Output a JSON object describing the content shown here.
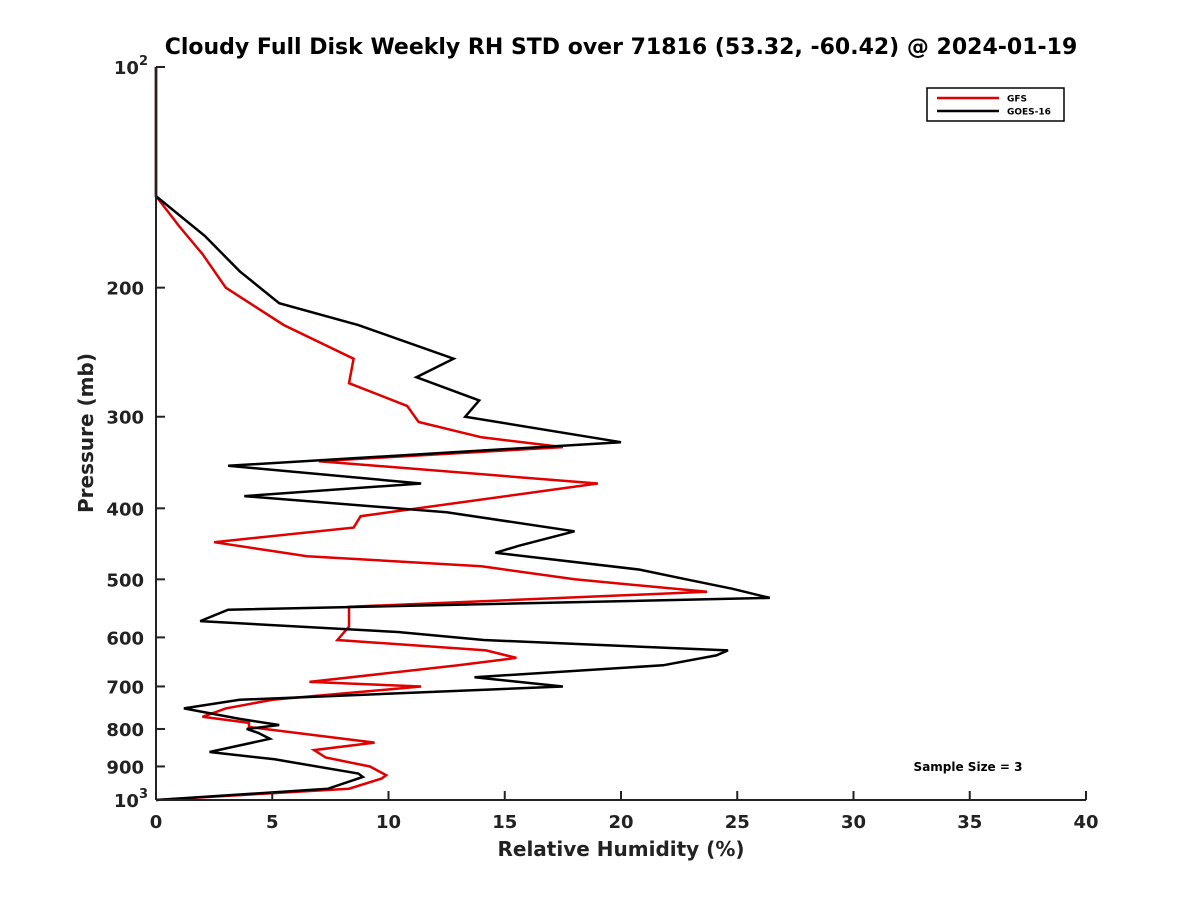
{
  "chart_data": {
    "type": "line",
    "title": "Cloudy Full Disk Weekly RH STD over 71816 (53.32, -60.42) @ 2024-01-19",
    "xlabel": "Relative Humidity (%)",
    "ylabel": "Pressure (mb)",
    "xlim": [
      0,
      40
    ],
    "ylim": [
      1000,
      100
    ],
    "yscale": "log",
    "y_reversed": true,
    "x_ticks": [
      0,
      5,
      10,
      15,
      20,
      25,
      30,
      35,
      40
    ],
    "x_tick_labels": [
      "0",
      "5",
      "10",
      "15",
      "20",
      "25",
      "30",
      "35",
      "40"
    ],
    "y_ticks": [
      100,
      200,
      300,
      400,
      500,
      600,
      700,
      800,
      900,
      1000
    ],
    "y_tick_labels": [
      {
        "base": "10",
        "exp": "2"
      },
      {
        "base": "200",
        "exp": ""
      },
      {
        "base": "300",
        "exp": ""
      },
      {
        "base": "400",
        "exp": ""
      },
      {
        "base": "500",
        "exp": ""
      },
      {
        "base": "600",
        "exp": ""
      },
      {
        "base": "700",
        "exp": ""
      },
      {
        "base": "800",
        "exp": ""
      },
      {
        "base": "900",
        "exp": ""
      },
      {
        "base": "10",
        "exp": "3"
      }
    ],
    "grid": false,
    "legend_position": "top-right",
    "annotation": "Sample Size = 3",
    "series": [
      {
        "name": "GFS",
        "color": "#e00000",
        "points": [
          [
            0,
            100
          ],
          [
            0,
            150
          ],
          [
            1,
            165
          ],
          [
            2,
            180
          ],
          [
            3,
            200
          ],
          [
            5.5,
            225
          ],
          [
            8.5,
            250
          ],
          [
            8.3,
            270
          ],
          [
            10.8,
            290
          ],
          [
            11.3,
            305
          ],
          [
            14,
            320
          ],
          [
            17.5,
            330
          ],
          [
            7,
            345
          ],
          [
            19,
            370
          ],
          [
            8.8,
            410
          ],
          [
            8.5,
            425
          ],
          [
            2.5,
            445
          ],
          [
            6.5,
            465
          ],
          [
            14,
            480
          ],
          [
            18,
            500
          ],
          [
            23.7,
            520
          ],
          [
            8.3,
            545
          ],
          [
            8.3,
            580
          ],
          [
            7.8,
            605
          ],
          [
            14.2,
            625
          ],
          [
            15.5,
            640
          ],
          [
            13,
            655
          ],
          [
            6.6,
            690
          ],
          [
            11.4,
            700
          ],
          [
            5,
            730
          ],
          [
            3,
            750
          ],
          [
            2,
            770
          ],
          [
            4,
            785
          ],
          [
            4,
            795
          ],
          [
            9.4,
            835
          ],
          [
            6.8,
            855
          ],
          [
            7.3,
            875
          ],
          [
            9.2,
            900
          ],
          [
            9.9,
            925
          ],
          [
            9.7,
            935
          ],
          [
            8.3,
            965
          ],
          [
            0,
            1000
          ]
        ]
      },
      {
        "name": "GOES-16",
        "color": "#000000",
        "points": [
          [
            0,
            100
          ],
          [
            0,
            150
          ],
          [
            2.1,
            170
          ],
          [
            3.6,
            190
          ],
          [
            5.3,
            210
          ],
          [
            8.7,
            225
          ],
          [
            12.8,
            250
          ],
          [
            11.2,
            265
          ],
          [
            13.9,
            285
          ],
          [
            13.3,
            300
          ],
          [
            20,
            325
          ],
          [
            3.1,
            350
          ],
          [
            11.4,
            370
          ],
          [
            3.8,
            385
          ],
          [
            12.5,
            405
          ],
          [
            18,
            430
          ],
          [
            15.6,
            450
          ],
          [
            14.6,
            460
          ],
          [
            20.8,
            485
          ],
          [
            22.8,
            500
          ],
          [
            24.8,
            515
          ],
          [
            26.4,
            530
          ],
          [
            3.1,
            550
          ],
          [
            1.9,
            570
          ],
          [
            10.4,
            590
          ],
          [
            14.1,
            605
          ],
          [
            24.6,
            625
          ],
          [
            24.1,
            635
          ],
          [
            21.8,
            655
          ],
          [
            13.7,
            680
          ],
          [
            17.5,
            700
          ],
          [
            3.6,
            730
          ],
          [
            1.2,
            750
          ],
          [
            3.6,
            775
          ],
          [
            5.3,
            790
          ],
          [
            3.9,
            800
          ],
          [
            4.4,
            810
          ],
          [
            4.9,
            825
          ],
          [
            2.3,
            860
          ],
          [
            5.1,
            880
          ],
          [
            8.7,
            920
          ],
          [
            8.9,
            930
          ],
          [
            7.4,
            965
          ],
          [
            0,
            1000
          ]
        ]
      }
    ]
  }
}
